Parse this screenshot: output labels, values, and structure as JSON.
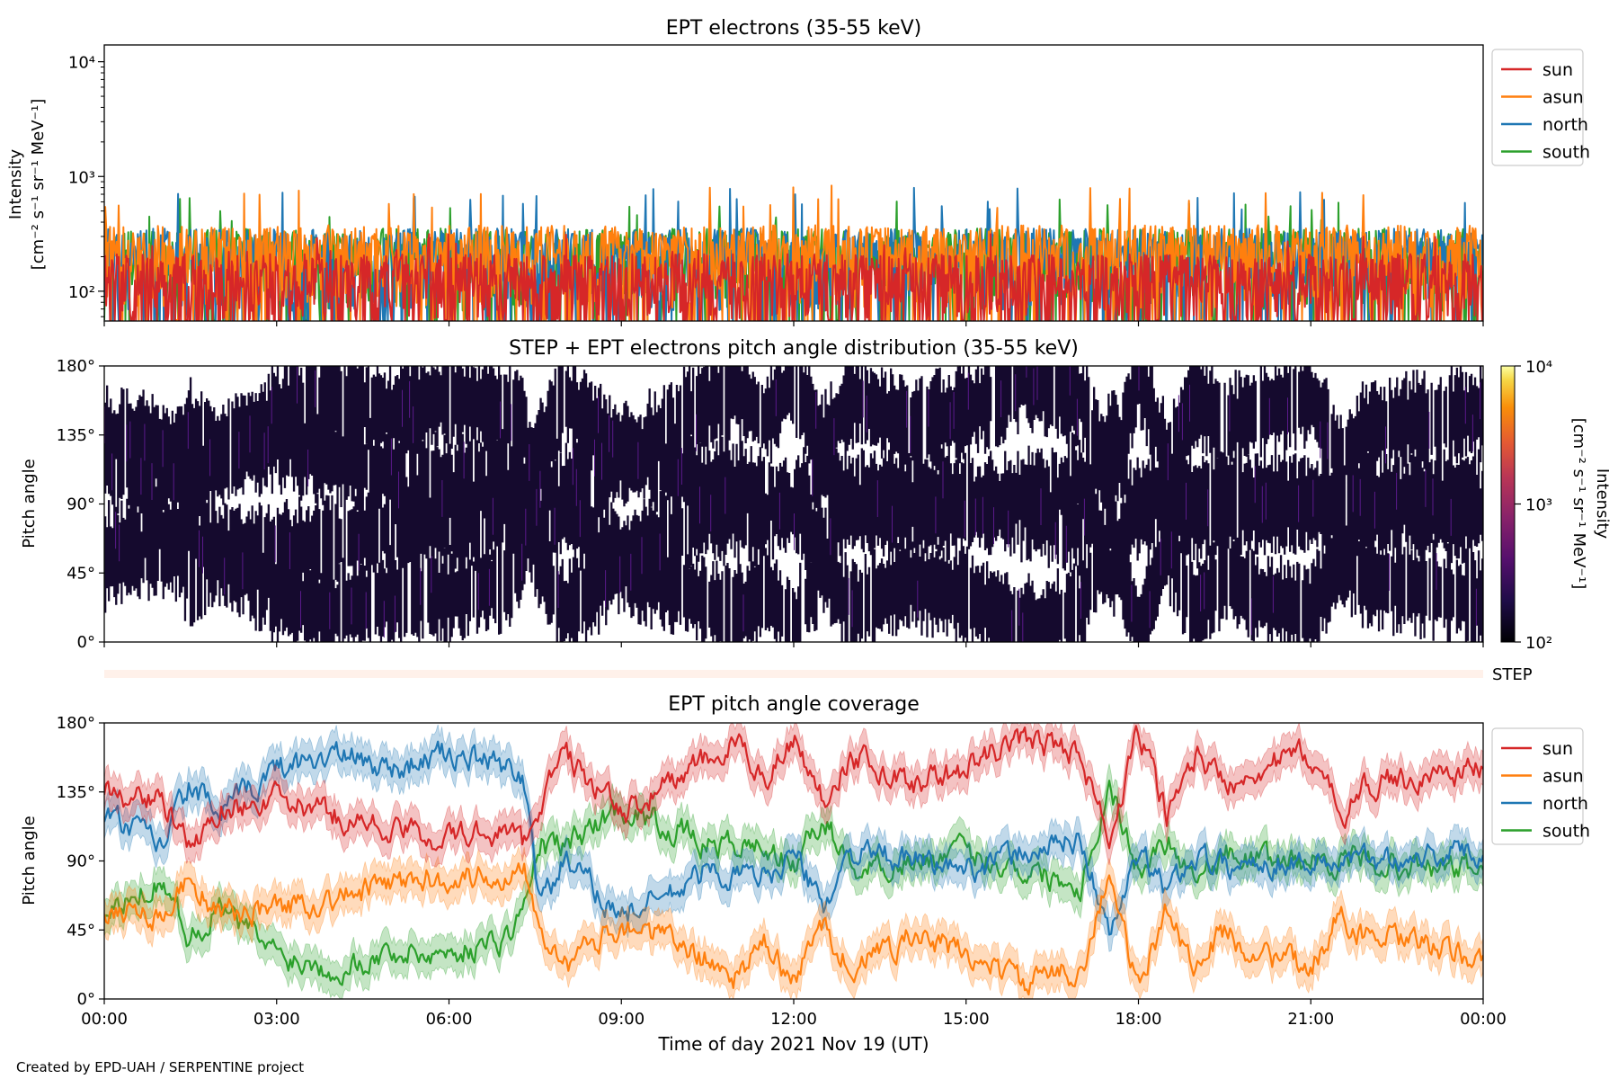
{
  "credit": "Created by EPD-UAH / SERPENTINE project",
  "xlabel": "Time of day 2021 Nov 19 (UT)",
  "xticks": [
    "00:00",
    "03:00",
    "06:00",
    "09:00",
    "12:00",
    "15:00",
    "18:00",
    "21:00",
    "00:00"
  ],
  "legend": [
    "sun",
    "asun",
    "north",
    "south"
  ],
  "colors": {
    "sun": "#d62728",
    "asun": "#ff7f0e",
    "north": "#1f77b4",
    "south": "#2ca02c"
  },
  "chart_data": [
    {
      "type": "line",
      "title": "EPT electrons (35-55 keV)",
      "ylabel": [
        "Intensity",
        "[cm⁻² s⁻¹ sr⁻¹ MeV⁻¹]"
      ],
      "yscale": "log",
      "ylim": [
        55,
        14000
      ],
      "yticks": [
        "10²",
        "10³",
        "10⁴"
      ],
      "xlim_hours": [
        0,
        24
      ],
      "legend_position": "outside-right-top",
      "series": [
        {
          "name": "sun",
          "baseline": 90,
          "spread_max": 320,
          "points": 1440
        },
        {
          "name": "asun",
          "baseline": 160,
          "spread_max": 850,
          "points": 1440
        },
        {
          "name": "north",
          "baseline": 150,
          "spread_max": 800,
          "points": 1440
        },
        {
          "name": "south",
          "baseline": 150,
          "spread_max": 650,
          "points": 1440
        }
      ]
    },
    {
      "type": "heatmap",
      "title": "STEP + EPT electrons pitch angle distribution (35-55 keV)",
      "ylabel": "Pitch angle",
      "ylim": [
        0,
        180
      ],
      "yticks": [
        "0°",
        "45°",
        "90°",
        "135°",
        "180°"
      ],
      "xlim_hours": [
        0,
        24
      ],
      "colorbar": {
        "label": [
          "Intensity",
          "[cm⁻² s⁻¹ sr⁻¹ MeV⁻¹]"
        ],
        "scale": "log",
        "range": [
          100,
          10000
        ],
        "ticks": [
          "10²",
          "10³",
          "10⁴"
        ]
      }
    },
    {
      "type": "strip",
      "label": "STEP"
    },
    {
      "type": "line",
      "title": "EPT pitch angle coverage",
      "ylabel": "Pitch angle",
      "ylim": [
        0,
        180
      ],
      "yticks": [
        "0°",
        "45°",
        "90°",
        "135°",
        "180°"
      ],
      "xlim_hours": [
        0,
        24
      ],
      "legend_position": "outside-right-top",
      "series": [
        {
          "name": "sun",
          "x": [
            0,
            1,
            1.5,
            2,
            3,
            4,
            5,
            6,
            7,
            7.3,
            7.6,
            8,
            9,
            10,
            10.5,
            11,
            11.5,
            12,
            12.5,
            13,
            14,
            15,
            16,
            17,
            17.5,
            18,
            18.5,
            19,
            19.5,
            20,
            21,
            21.5,
            22,
            23,
            24
          ],
          "y": [
            135,
            130,
            95,
            125,
            130,
            120,
            110,
            105,
            110,
            100,
            130,
            160,
            120,
            145,
            155,
            165,
            145,
            170,
            130,
            160,
            140,
            150,
            170,
            160,
            100,
            175,
            120,
            160,
            140,
            150,
            160,
            120,
            140,
            145,
            150
          ]
        },
        {
          "name": "asun",
          "x": [
            0,
            1,
            1.5,
            2,
            3,
            4,
            5,
            6,
            7,
            7.3,
            7.6,
            8,
            9,
            10,
            10.5,
            11,
            11.5,
            12,
            12.5,
            13,
            14,
            15,
            16,
            17,
            17.5,
            18,
            18.5,
            19,
            19.5,
            20,
            21,
            21.5,
            22,
            23,
            24
          ],
          "y": [
            60,
            55,
            80,
            55,
            60,
            65,
            75,
            80,
            80,
            90,
            50,
            20,
            50,
            35,
            25,
            15,
            35,
            10,
            50,
            20,
            40,
            30,
            10,
            20,
            80,
            5,
            60,
            20,
            45,
            30,
            20,
            55,
            40,
            35,
            25
          ]
        },
        {
          "name": "north",
          "x": [
            0,
            1,
            1.5,
            2,
            3,
            4,
            5,
            6,
            7,
            7.3,
            7.6,
            8,
            9,
            10,
            10.5,
            11,
            11.5,
            12,
            12.5,
            13,
            14,
            15,
            16,
            17,
            17.5,
            18,
            18.5,
            19,
            19.5,
            20,
            21,
            21.5,
            22,
            23,
            24
          ],
          "y": [
            120,
            100,
            140,
            120,
            150,
            160,
            150,
            160,
            150,
            145,
            60,
            90,
            55,
            70,
            85,
            80,
            80,
            95,
            60,
            95,
            90,
            85,
            95,
            105,
            40,
            95,
            70,
            95,
            85,
            90,
            90,
            90,
            90,
            95,
            95
          ]
        },
        {
          "name": "south",
          "x": [
            0,
            1,
            1.5,
            2,
            3,
            4,
            5,
            6,
            7,
            7.3,
            7.6,
            8,
            9,
            10,
            10.5,
            11,
            11.5,
            12,
            12.5,
            13,
            14,
            15,
            16,
            17,
            17.5,
            18,
            18.5,
            19,
            19.5,
            20,
            21,
            21.5,
            22,
            23,
            24
          ],
          "y": [
            50,
            80,
            40,
            60,
            30,
            20,
            30,
            30,
            40,
            60,
            100,
            100,
            125,
            110,
            100,
            100,
            100,
            85,
            120,
            85,
            90,
            95,
            85,
            75,
            140,
            85,
            105,
            80,
            95,
            90,
            90,
            90,
            90,
            85,
            85
          ]
        }
      ]
    }
  ]
}
